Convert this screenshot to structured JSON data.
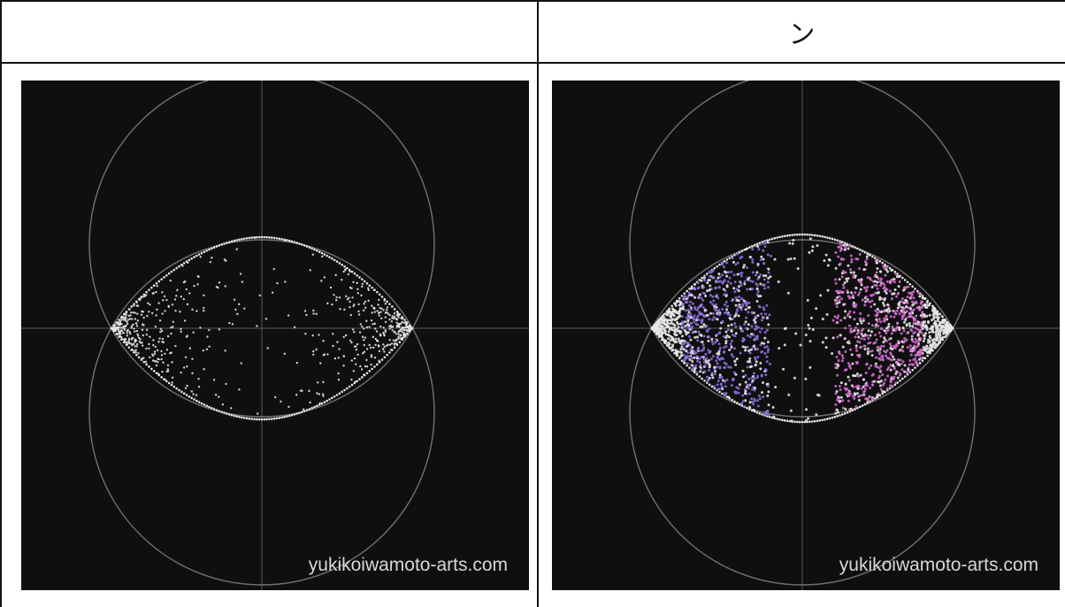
{
  "table": {
    "header_left": "",
    "header_right": "ン"
  },
  "panels": [
    {
      "name": "uncolored-pattern",
      "watermark": "yukikoiwamoto-arts.com",
      "tint": "white"
    },
    {
      "name": "colored-pattern",
      "watermark": "yukikoiwamoto-arts.com",
      "tint": "purple-pink"
    }
  ],
  "colors": {
    "background": "#0f0f0f",
    "dots": "#e6e6e6",
    "purple": "#8a6cd8",
    "pink": "#d06acb",
    "guide_lines": "#8a8a8a"
  }
}
